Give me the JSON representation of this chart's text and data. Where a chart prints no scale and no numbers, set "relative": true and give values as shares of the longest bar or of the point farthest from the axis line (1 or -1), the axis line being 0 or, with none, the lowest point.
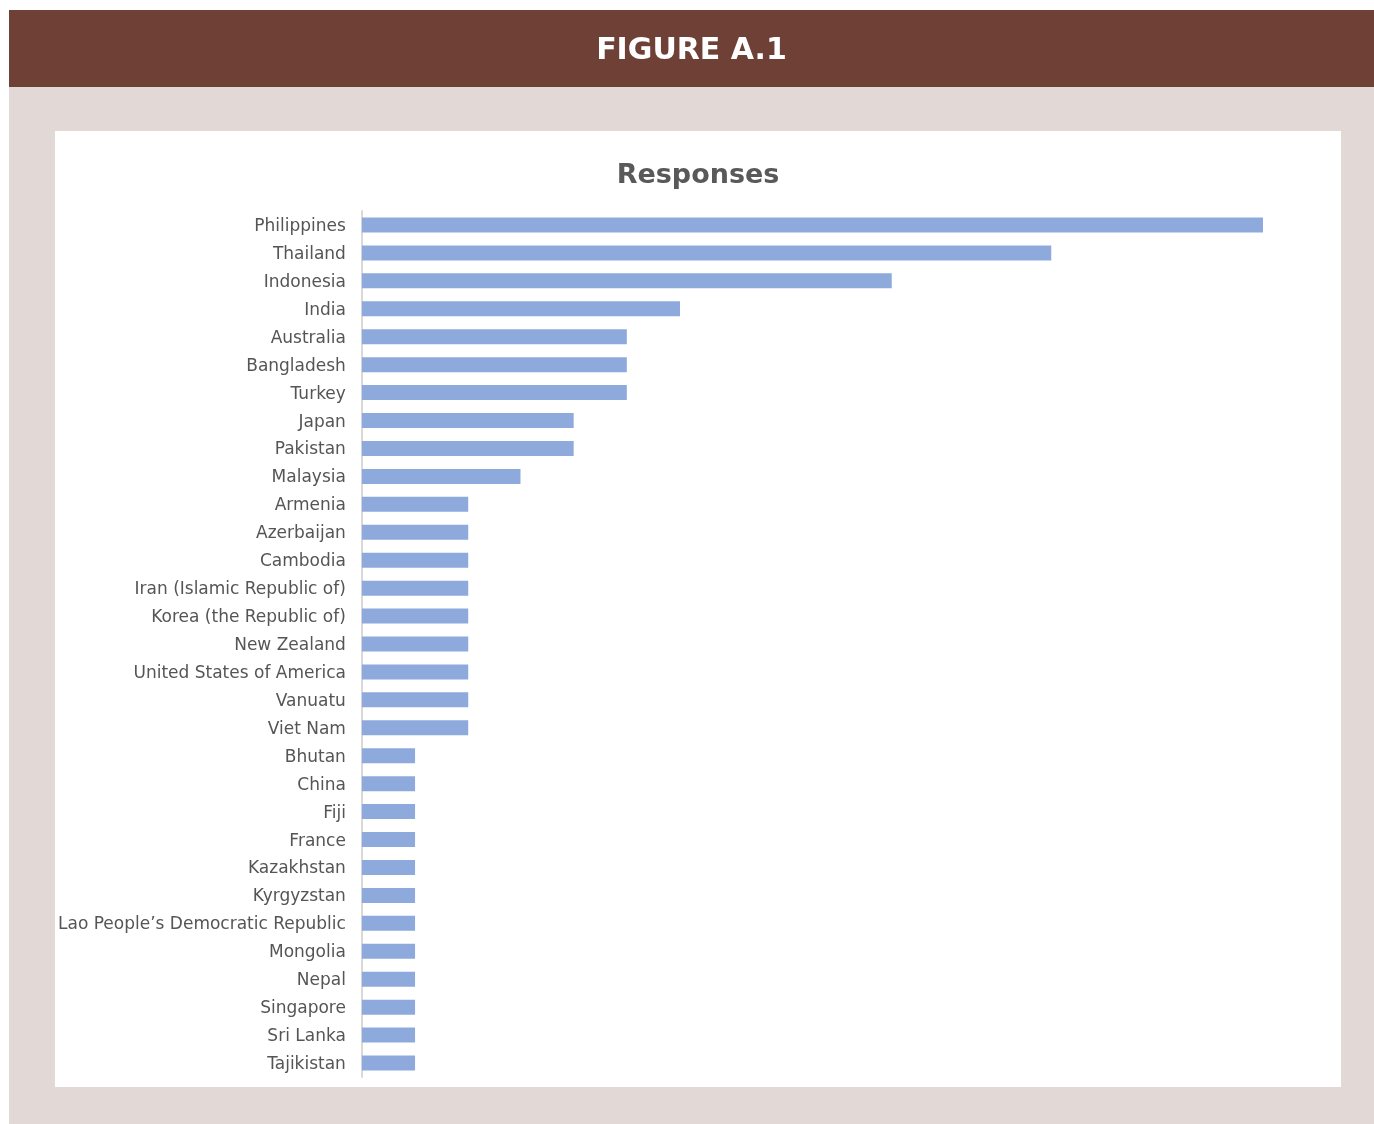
{
  "chart_data": {
    "type": "bar",
    "title": "FIGURE A.1",
    "subtitle": "Responses",
    "orientation": "horizontal",
    "relative": true,
    "color": "#8eaadc",
    "categories": [
      "Philippines",
      "Thailand",
      "Indonesia",
      "India",
      "Australia",
      "Bangladesh",
      "Turkey",
      "Japan",
      "Pakistan",
      "Malaysia",
      "Armenia",
      "Azerbaijan",
      "Cambodia",
      "Iran (Islamic Republic of)",
      "Korea (the Republic of)",
      "New Zealand",
      "United States of America",
      "Vanuatu",
      "Viet Nam",
      "Bhutan",
      "China",
      "Fiji",
      "France",
      "Kazakhstan",
      "Kyrgyzstan",
      "Lao People’s Democratic Republic",
      "Mongolia",
      "Nepal",
      "Singapore",
      "Sri Lanka",
      "Tajikistan"
    ],
    "values": [
      1,
      0.765,
      0.588,
      0.353,
      0.294,
      0.294,
      0.294,
      0.235,
      0.235,
      0.176,
      0.118,
      0.118,
      0.118,
      0.118,
      0.118,
      0.118,
      0.118,
      0.118,
      0.118,
      0.059,
      0.059,
      0.059,
      0.059,
      0.059,
      0.059,
      0.059,
      0.059,
      0.059,
      0.059,
      0.059,
      0.059
    ]
  }
}
